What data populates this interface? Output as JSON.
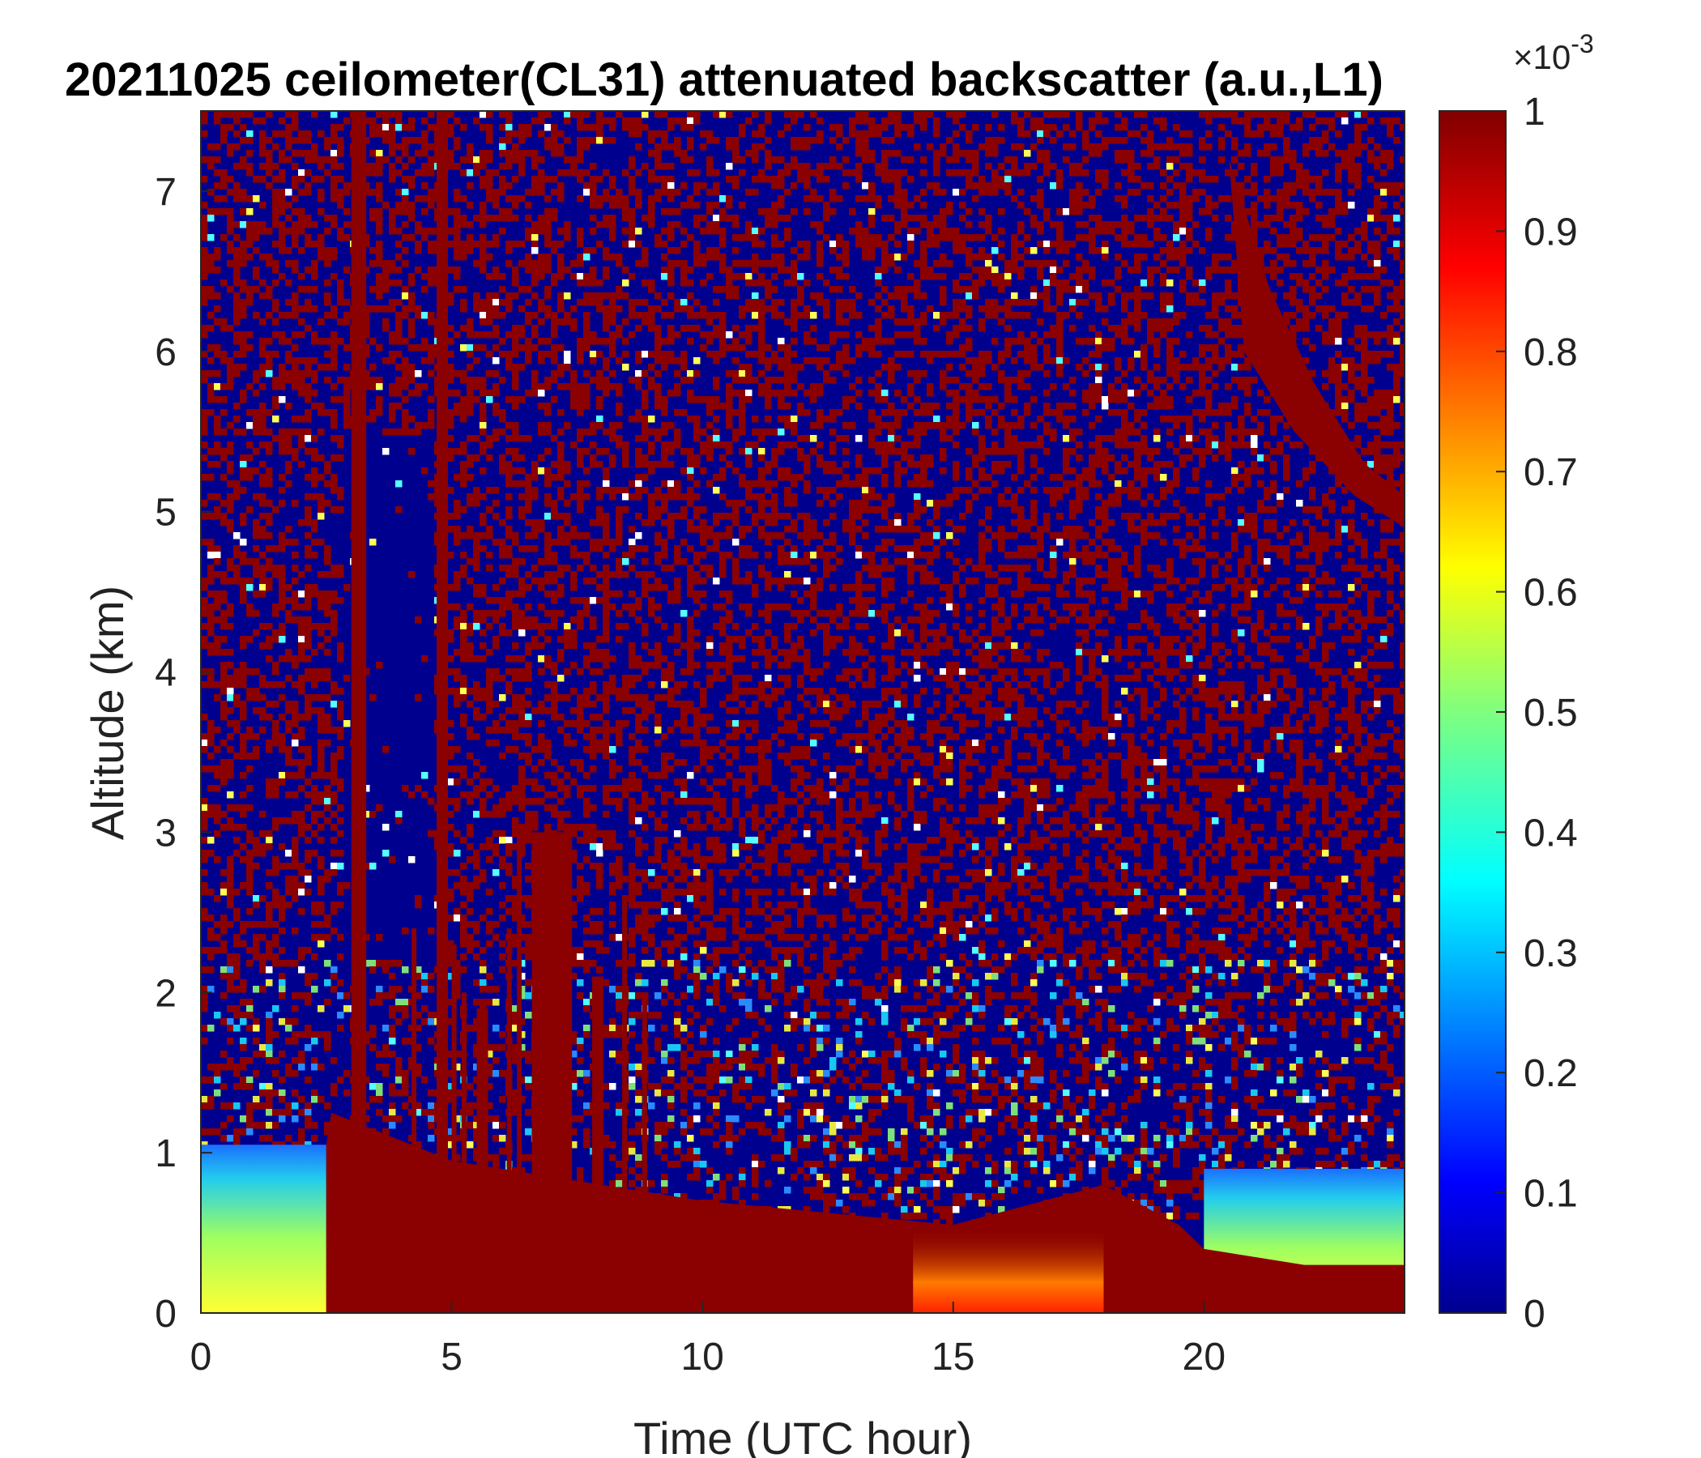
{
  "chart_data": {
    "type": "heatmap",
    "title": "20211025 ceilometer(CL31) attenuated backscatter (a.u.,L1)",
    "xlabel": "Time (UTC hour)",
    "ylabel": "Altitude (km)",
    "xlim": [
      0,
      24
    ],
    "ylim": [
      0,
      7.5
    ],
    "x_ticks": [
      0,
      5,
      10,
      15,
      20
    ],
    "y_ticks": [
      0,
      1,
      2,
      3,
      4,
      5,
      6,
      7
    ],
    "colorbar": {
      "colormap": "jet",
      "range": [
        0,
        1
      ],
      "ticks": [
        0,
        0.1,
        0.2,
        0.3,
        0.4,
        0.5,
        0.6,
        0.7,
        0.8,
        0.9,
        1
      ],
      "tick_labels": [
        "0",
        "0.1",
        "0.2",
        "0.3",
        "0.4",
        "0.5",
        "0.6",
        "0.7",
        "0.8",
        "0.9",
        "1"
      ],
      "exponent_label": "×10",
      "exponent": "-3"
    },
    "features": {
      "background": "noisy mix of saturated (dark red) and low (dark blue) values above ~1.5 km",
      "boundary_layer_top_km": [
        {
          "time": 0,
          "alt": 1.0
        },
        {
          "time": 2.5,
          "alt": 1.05
        },
        {
          "time": 2.6,
          "alt": 1.25
        },
        {
          "time": 5,
          "alt": 0.95
        },
        {
          "time": 10,
          "alt": 0.7
        },
        {
          "time": 15,
          "alt": 0.55
        },
        {
          "time": 20,
          "alt": 0.6
        },
        {
          "time": 24,
          "alt": 0.35
        }
      ],
      "low_signal_column": {
        "time_start": 2.8,
        "time_end": 4.6,
        "top_km": 5.5
      }
    }
  }
}
